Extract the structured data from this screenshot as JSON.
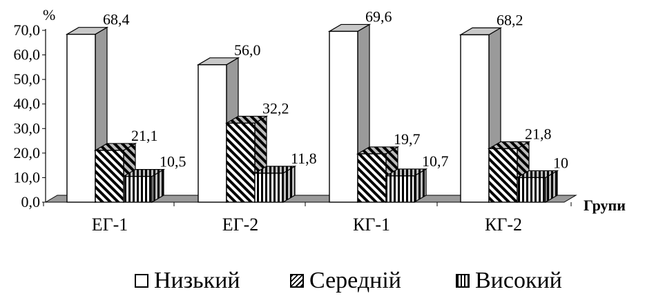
{
  "chart_data": {
    "type": "bar",
    "categories": [
      "ЕГ-1",
      "ЕГ-2",
      "КГ-1",
      "КГ-2"
    ],
    "series": [
      {
        "name": "Низький",
        "values": [
          68.4,
          56.0,
          69.6,
          68.2
        ],
        "labels": [
          "68,4",
          "56,0",
          "69,6",
          "68,2"
        ],
        "pattern": "white"
      },
      {
        "name": "Середній",
        "values": [
          21.1,
          32.2,
          19.7,
          21.8
        ],
        "labels": [
          "21,1",
          "32,2",
          "19,7",
          "21,8"
        ],
        "pattern": "diagonal"
      },
      {
        "name": "Високий",
        "values": [
          10.5,
          11.8,
          10.7,
          10.0
        ],
        "labels": [
          "10,5",
          "11,8",
          "10,7",
          "10"
        ],
        "pattern": "vertical"
      }
    ],
    "y_unit_label": "%",
    "xlabel": "Групи",
    "ylim": [
      0,
      70
    ],
    "yticks": [
      "0,0",
      "10,0",
      "20,0",
      "30,0",
      "40,0",
      "50,0",
      "60,0",
      "70,0"
    ],
    "legend_position": "bottom",
    "style": "3d-clustered-bar",
    "colors": {
      "front": "#ffffff",
      "side": "#9a9a9a",
      "top": "#c8c8c8",
      "floor": "#9a9a9a",
      "outline": "#000000"
    }
  }
}
